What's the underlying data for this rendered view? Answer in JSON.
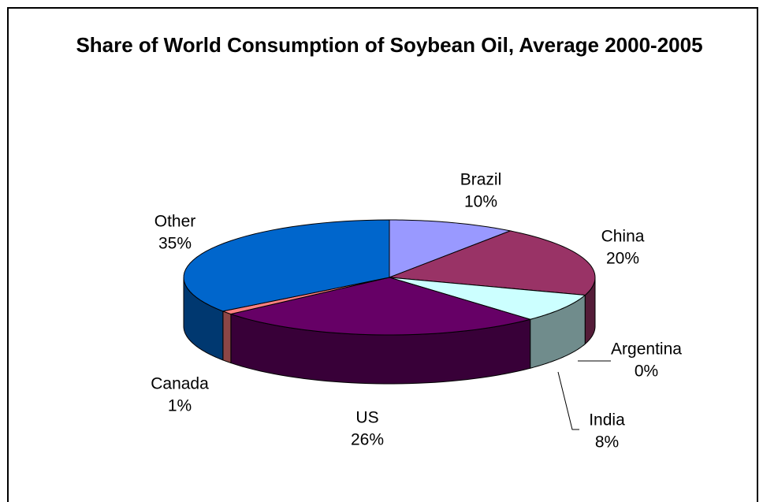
{
  "chart_data": {
    "type": "pie3d",
    "title": "Share of World Consumption of Soybean Oil, Average 2000-2005",
    "categories": [
      "Brazil",
      "China",
      "Argentina",
      "India",
      "US",
      "Canada",
      "Other"
    ],
    "values": [
      10,
      20,
      0,
      8,
      26,
      1,
      35
    ],
    "value_labels": [
      "10%",
      "20%",
      "0%",
      "8%",
      "26%",
      "1%",
      "35%"
    ],
    "colors": [
      "#9999ff",
      "#993366",
      "#ffffcc",
      "#ccffff",
      "#660066",
      "#ff8080",
      "#0066cc"
    ]
  }
}
